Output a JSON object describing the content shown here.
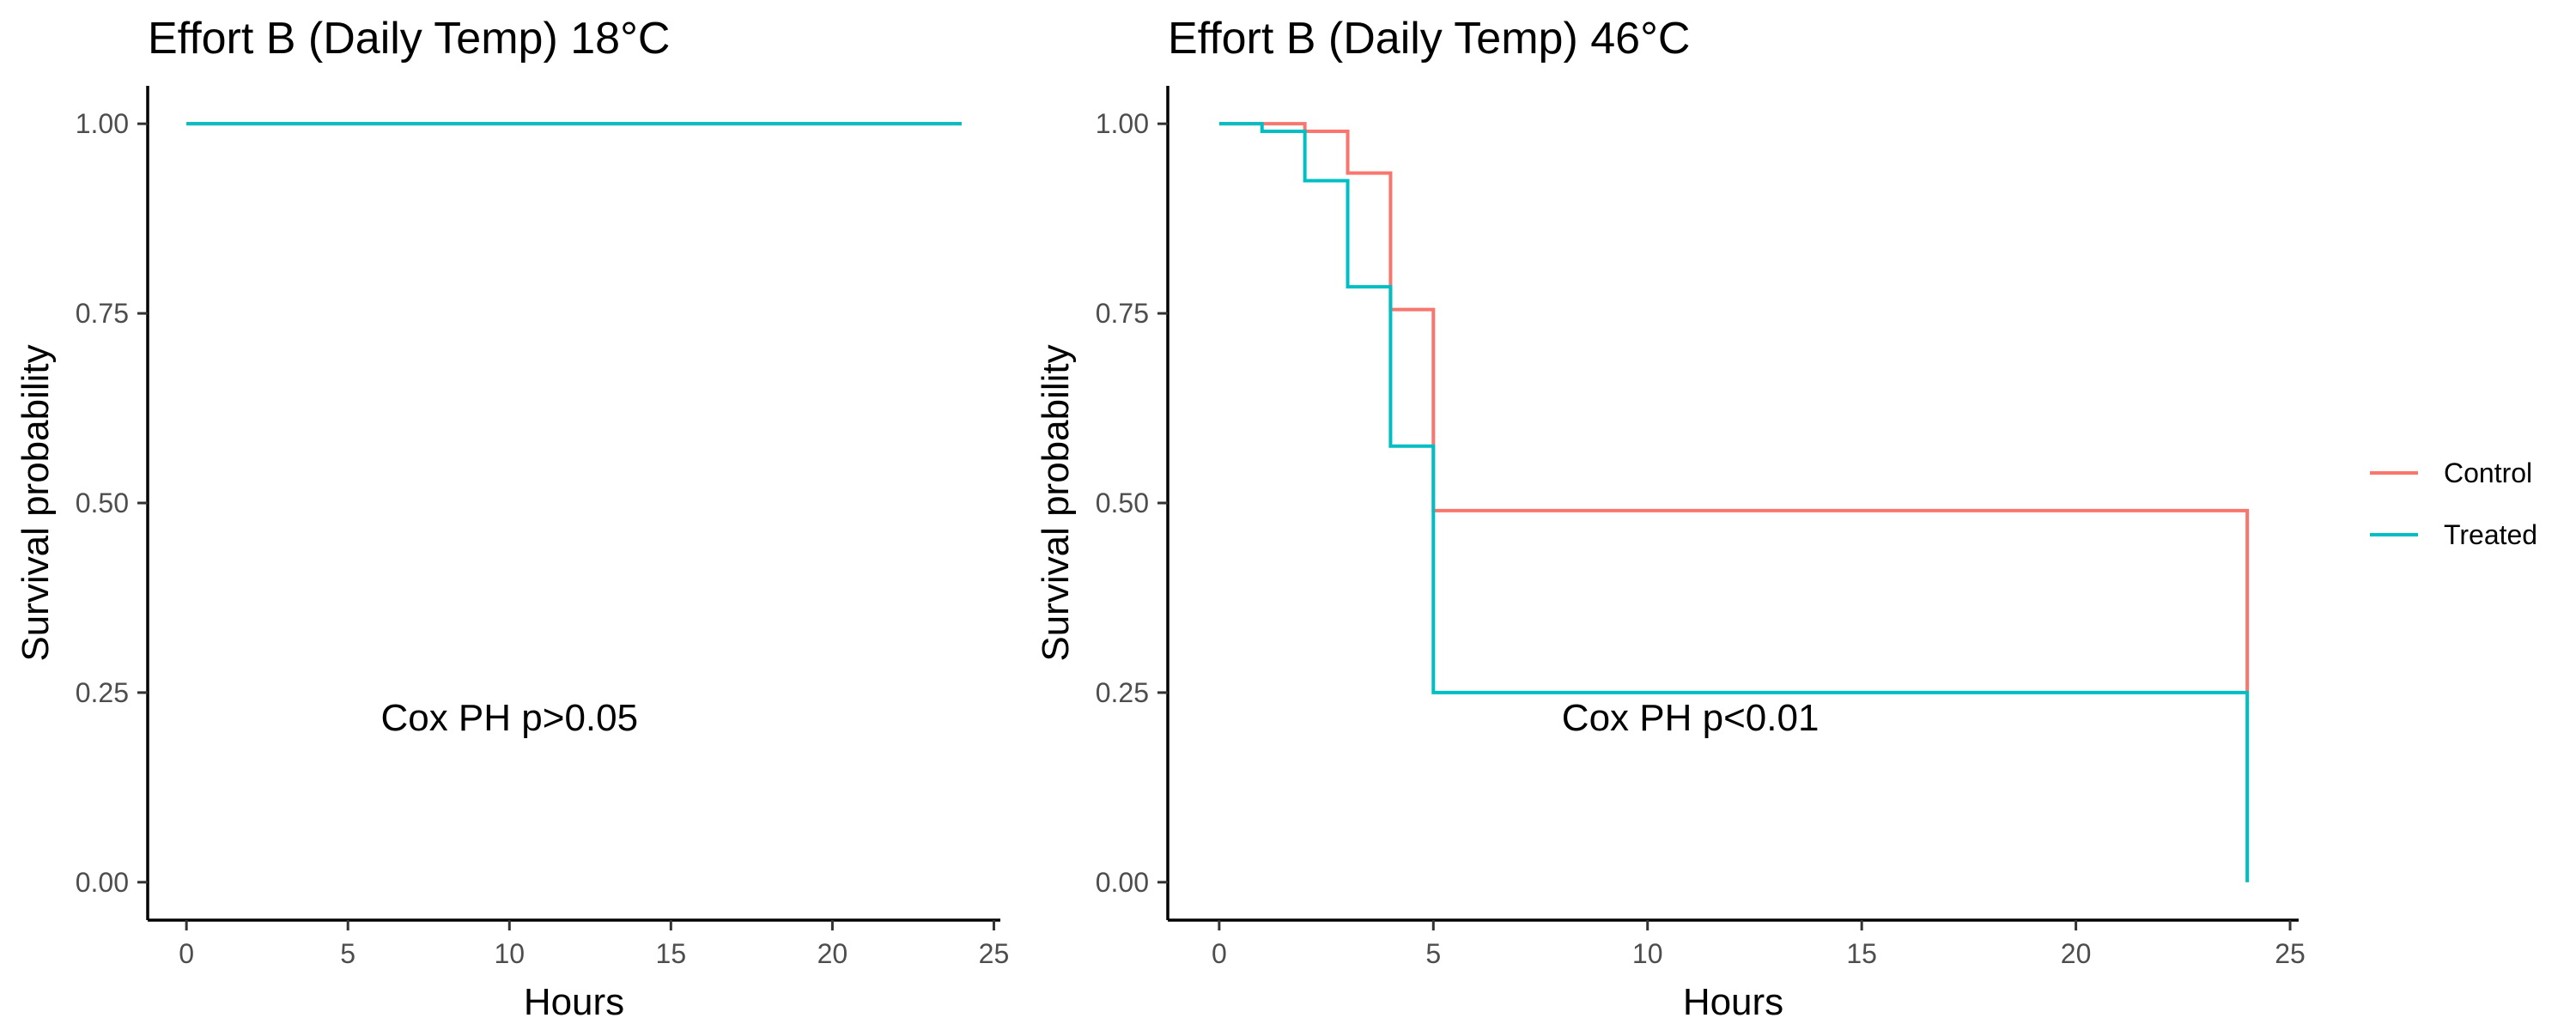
{
  "chart_data": [
    {
      "type": "line",
      "step": true,
      "title": "Effort B (Daily Temp) 18°C",
      "xlabel": "Hours",
      "ylabel": "Survival probability",
      "xlim": [
        -1.2,
        25.2
      ],
      "ylim": [
        -0.05,
        1.05
      ],
      "xticks": [
        0,
        5,
        10,
        15,
        20,
        25
      ],
      "yticks": [
        0,
        0.25,
        0.5,
        0.75,
        1.0
      ],
      "ytick_labels": [
        "0.00",
        "0.25",
        "0.50",
        "0.75",
        "1.00"
      ],
      "annotation": {
        "text": "Cox PH p>0.05",
        "x": 10,
        "y": 0.2
      },
      "series": [
        {
          "name": "Control",
          "color": "#F8766D",
          "x": [
            0,
            24
          ],
          "y": [
            1.0,
            1.0
          ]
        },
        {
          "name": "Treated",
          "color": "#00BFC4",
          "x": [
            0,
            24
          ],
          "y": [
            1.0,
            1.0
          ]
        }
      ]
    },
    {
      "type": "line",
      "step": true,
      "title": "Effort B (Daily Temp) 46°C",
      "xlabel": "Hours",
      "ylabel": "Survival probability",
      "xlim": [
        -1.2,
        25.2
      ],
      "ylim": [
        -0.05,
        1.05
      ],
      "xticks": [
        0,
        5,
        10,
        15,
        20,
        25
      ],
      "yticks": [
        0,
        0.25,
        0.5,
        0.75,
        1.0
      ],
      "ytick_labels": [
        "0.00",
        "0.25",
        "0.50",
        "0.75",
        "1.00"
      ],
      "annotation": {
        "text": "Cox PH p<0.01",
        "x": 11,
        "y": 0.2
      },
      "series": [
        {
          "name": "Control",
          "color": "#F8766D",
          "x": [
            0,
            1,
            2,
            3,
            4,
            5,
            24,
            24
          ],
          "y": [
            1.0,
            1.0,
            0.99,
            0.935,
            0.755,
            0.49,
            0.49,
            0.25
          ]
        },
        {
          "name": "Treated",
          "color": "#00BFC4",
          "x": [
            0,
            1,
            2,
            3,
            4,
            5,
            24,
            24
          ],
          "y": [
            1.0,
            0.99,
            0.925,
            0.785,
            0.575,
            0.25,
            0.25,
            0.0
          ]
        }
      ]
    }
  ],
  "legend": {
    "placement": "right",
    "entries": [
      {
        "label": "Control",
        "color": "#F8766D"
      },
      {
        "label": "Treated",
        "color": "#00BFC4"
      }
    ]
  }
}
